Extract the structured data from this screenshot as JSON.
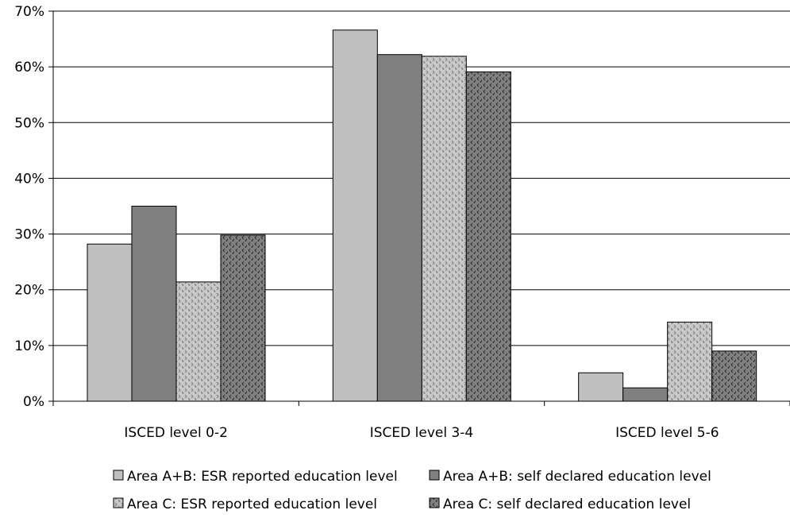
{
  "chart_data": {
    "type": "bar",
    "categories": [
      "ISCED level 0-2",
      "ISCED level 3-4",
      "ISCED level 5-6"
    ],
    "series": [
      {
        "name": "Area A+B: ESR reported education level",
        "values": [
          28.2,
          66.6,
          5.1
        ],
        "color": "#c0c0c0",
        "pattern": "solid"
      },
      {
        "name": "Area A+B: self declared education level",
        "values": [
          35.0,
          62.2,
          2.4
        ],
        "color": "#808080",
        "pattern": "solid"
      },
      {
        "name": "Area C: ESR reported education level",
        "values": [
          21.4,
          61.9,
          14.2
        ],
        "color": "#c0c0c0",
        "pattern": "dots-light"
      },
      {
        "name": "Area C: self declared education level",
        "values": [
          29.8,
          59.1,
          9.0
        ],
        "color": "#808080",
        "pattern": "dots-dark"
      }
    ],
    "yticks": [
      "0%",
      "10%",
      "20%",
      "30%",
      "40%",
      "50%",
      "60%",
      "70%"
    ],
    "ylim": [
      0,
      70
    ],
    "grid": true,
    "legend_position": "bottom"
  }
}
